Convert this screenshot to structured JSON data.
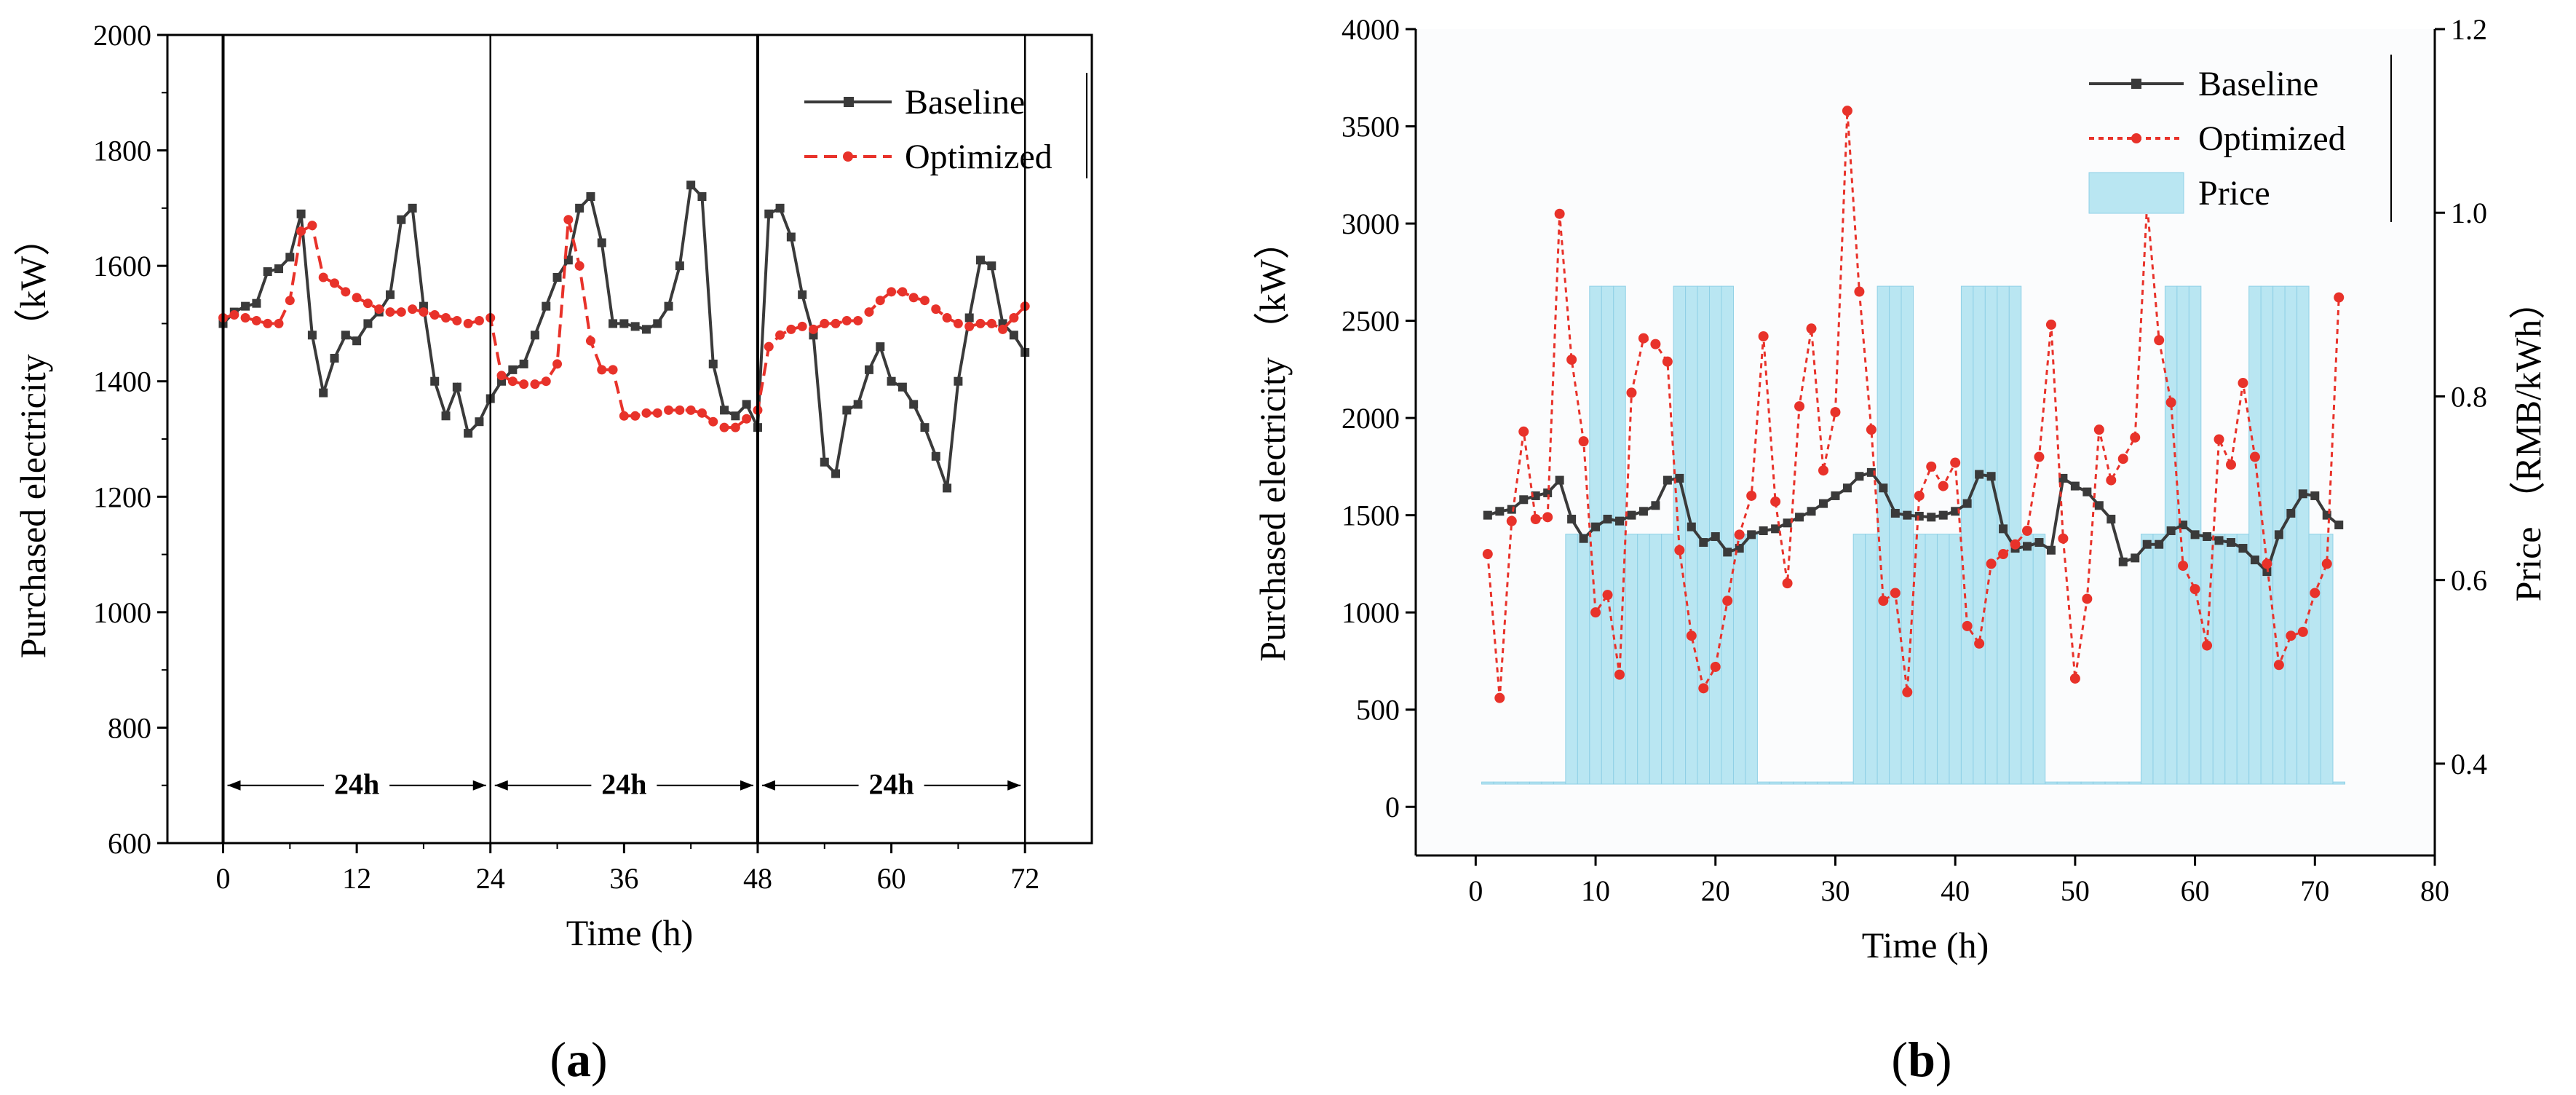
{
  "chart_data": [
    {
      "type": "line",
      "panel_label": "a",
      "xlabel": "Time (h)",
      "ylabel": "Purchased electricity （kW）",
      "xlim": [
        -5,
        78
      ],
      "ylim": [
        600,
        2000
      ],
      "xticks": [
        "0",
        "12",
        "24",
        "36",
        "48",
        "60",
        "72"
      ],
      "yticks": [
        "600",
        "800",
        "1000",
        "1200",
        "1400",
        "1600",
        "1800",
        "2000"
      ],
      "legend_position": "top-right",
      "day_markers": [
        0,
        24,
        48,
        72
      ],
      "annotations": [
        {
          "text": "24h",
          "from": 0,
          "to": 24
        },
        {
          "text": "24h",
          "from": 24,
          "to": 48
        },
        {
          "text": "24h",
          "from": 48,
          "to": 72
        }
      ],
      "x": [
        0,
        1,
        2,
        3,
        4,
        5,
        6,
        7,
        8,
        9,
        10,
        11,
        12,
        13,
        14,
        15,
        16,
        17,
        18,
        19,
        20,
        21,
        22,
        23,
        24,
        25,
        26,
        27,
        28,
        29,
        30,
        31,
        32,
        33,
        34,
        35,
        36,
        37,
        38,
        39,
        40,
        41,
        42,
        43,
        44,
        45,
        46,
        47,
        48,
        49,
        50,
        51,
        52,
        53,
        54,
        55,
        56,
        57,
        58,
        59,
        60,
        61,
        62,
        63,
        64,
        65,
        66,
        67,
        68,
        69,
        70,
        71,
        72
      ],
      "series": [
        {
          "name": "Baseline",
          "color": "#3a3a3a",
          "marker": "square",
          "values": [
            1500,
            1520,
            1530,
            1535,
            1590,
            1595,
            1615,
            1690,
            1480,
            1380,
            1440,
            1480,
            1470,
            1500,
            1520,
            1550,
            1680,
            1700,
            1530,
            1400,
            1340,
            1390,
            1310,
            1330,
            1370,
            1400,
            1420,
            1430,
            1480,
            1530,
            1580,
            1610,
            1700,
            1720,
            1640,
            1500,
            1500,
            1495,
            1490,
            1500,
            1530,
            1600,
            1740,
            1720,
            1430,
            1350,
            1340,
            1360,
            1320,
            1690,
            1700,
            1650,
            1550,
            1480,
            1260,
            1240,
            1350,
            1360,
            1420,
            1460,
            1400,
            1390,
            1360,
            1320,
            1270,
            1215,
            1400,
            1510,
            1610,
            1600,
            1500,
            1480,
            1450
          ]
        },
        {
          "name": "Optimized",
          "color": "#e8322a",
          "marker": "circle",
          "values": [
            1510,
            1515,
            1510,
            1505,
            1500,
            1500,
            1540,
            1660,
            1670,
            1580,
            1570,
            1555,
            1545,
            1535,
            1525,
            1520,
            1520,
            1525,
            1520,
            1515,
            1510,
            1505,
            1500,
            1505,
            1510,
            1410,
            1400,
            1395,
            1395,
            1400,
            1430,
            1680,
            1600,
            1470,
            1420,
            1420,
            1340,
            1340,
            1345,
            1345,
            1350,
            1350,
            1350,
            1345,
            1330,
            1320,
            1320,
            1335,
            1350,
            1460,
            1480,
            1490,
            1495,
            1490,
            1500,
            1500,
            1505,
            1505,
            1520,
            1540,
            1555,
            1555,
            1545,
            1540,
            1525,
            1510,
            1500,
            1495,
            1500,
            1500,
            1490,
            1510,
            1530
          ]
        }
      ]
    },
    {
      "type": "line",
      "panel_label": "b",
      "xlabel": "Time (h)",
      "ylabel": "Purchased electricity （kW）",
      "y2label": "Price （RMB/kWh）",
      "xlim": [
        -5,
        80
      ],
      "ylim": [
        -250,
        4000
      ],
      "y2lim": [
        0.3,
        1.2
      ],
      "xticks": [
        "0",
        "10",
        "20",
        "30",
        "40",
        "50",
        "60",
        "70",
        "80"
      ],
      "yticks": [
        "0",
        "500",
        "1000",
        "1500",
        "2000",
        "2500",
        "3000",
        "3500",
        "4000"
      ],
      "y2ticks": [
        "0.4",
        "0.6",
        "0.8",
        "1.0",
        "1.2"
      ],
      "legend_position": "top-right",
      "x": [
        1,
        2,
        3,
        4,
        5,
        6,
        7,
        8,
        9,
        10,
        11,
        12,
        13,
        14,
        15,
        16,
        17,
        18,
        19,
        20,
        21,
        22,
        23,
        24,
        25,
        26,
        27,
        28,
        29,
        30,
        31,
        32,
        33,
        34,
        35,
        36,
        37,
        38,
        39,
        40,
        41,
        42,
        43,
        44,
        45,
        46,
        47,
        48,
        49,
        50,
        51,
        52,
        53,
        54,
        55,
        56,
        57,
        58,
        59,
        60,
        61,
        62,
        63,
        64,
        65,
        66,
        67,
        68,
        69,
        70,
        71,
        72
      ],
      "series": [
        {
          "name": "Baseline",
          "color": "#3a3a3a",
          "marker": "square",
          "axis": "left",
          "values": [
            1500,
            1520,
            1530,
            1580,
            1600,
            1615,
            1680,
            1480,
            1380,
            1440,
            1480,
            1470,
            1500,
            1520,
            1550,
            1680,
            1690,
            1440,
            1360,
            1390,
            1310,
            1330,
            1400,
            1420,
            1430,
            1460,
            1490,
            1520,
            1560,
            1600,
            1640,
            1700,
            1720,
            1640,
            1510,
            1500,
            1495,
            1490,
            1500,
            1520,
            1560,
            1710,
            1700,
            1430,
            1330,
            1340,
            1360,
            1320,
            1690,
            1650,
            1620,
            1550,
            1480,
            1260,
            1280,
            1350,
            1350,
            1420,
            1450,
            1400,
            1390,
            1370,
            1360,
            1330,
            1270,
            1210,
            1400,
            1510,
            1610,
            1600,
            1500,
            1450
          ]
        },
        {
          "name": "Optimized",
          "color": "#e8322a",
          "marker": "circle",
          "axis": "left",
          "values": [
            1300,
            560,
            1470,
            1930,
            1480,
            1490,
            3050,
            2300,
            1880,
            1000,
            1090,
            680,
            2130,
            2410,
            2380,
            2290,
            1320,
            880,
            610,
            720,
            1060,
            1400,
            1600,
            2420,
            1570,
            1150,
            2060,
            2460,
            1730,
            2030,
            3580,
            2650,
            1940,
            1060,
            1100,
            590,
            1600,
            1750,
            1650,
            1770,
            930,
            840,
            1250,
            1300,
            1350,
            1420,
            1800,
            2480,
            1380,
            660,
            1070,
            1940,
            1680,
            1790,
            1900,
            3100,
            2400,
            2080,
            1240,
            1120,
            830,
            1890,
            1760,
            2180,
            1800,
            1250,
            730,
            880,
            900,
            1100,
            1250,
            2620
          ]
        },
        {
          "name": "Price",
          "color": "#b9e6f2",
          "type": "bar",
          "axis": "right",
          "values": [
            0.38,
            0.38,
            0.38,
            0.38,
            0.38,
            0.38,
            0.38,
            0.65,
            0.65,
            0.92,
            0.92,
            0.92,
            0.65,
            0.65,
            0.65,
            0.65,
            0.92,
            0.92,
            0.92,
            0.92,
            0.92,
            0.65,
            0.65,
            0.38,
            0.38,
            0.38,
            0.38,
            0.38,
            0.38,
            0.38,
            0.38,
            0.65,
            0.65,
            0.92,
            0.92,
            0.92,
            0.65,
            0.65,
            0.65,
            0.65,
            0.92,
            0.92,
            0.92,
            0.92,
            0.92,
            0.65,
            0.65,
            0.38,
            0.38,
            0.38,
            0.38,
            0.38,
            0.38,
            0.38,
            0.38,
            0.65,
            0.65,
            0.92,
            0.92,
            0.92,
            0.65,
            0.65,
            0.65,
            0.65,
            0.92,
            0.92,
            0.92,
            0.92,
            0.92,
            0.65,
            0.65,
            0.38
          ]
        }
      ]
    }
  ]
}
